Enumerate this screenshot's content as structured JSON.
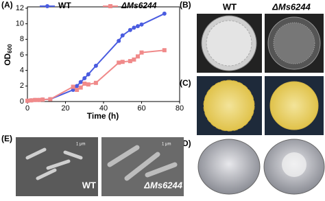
{
  "chart_data": {
    "type": "line",
    "panel_label": "(A)",
    "x_label": "Time (h)",
    "y_label": "OD",
    "y_label_sub": "600",
    "x": [
      0,
      2,
      4,
      6,
      8,
      12,
      24,
      26,
      28,
      30,
      32,
      36,
      48,
      50,
      54,
      56,
      58,
      60,
      72
    ],
    "series": [
      {
        "name": "WT",
        "color": "#4a5ce0",
        "marker": "circle",
        "values": [
          0.1,
          0.15,
          0.2,
          0.2,
          0.25,
          0.3,
          1.5,
          2.0,
          2.5,
          3.0,
          3.5,
          4.6,
          7.8,
          8.5,
          9.2,
          9.5,
          9.7,
          9.9,
          11.3
        ]
      },
      {
        "name": "ΔMs6244",
        "color": "#f08a8a",
        "marker": "square",
        "values": [
          0.1,
          0.15,
          0.2,
          0.2,
          0.25,
          0.3,
          1.9,
          1.5,
          1.8,
          2.3,
          2.2,
          2.4,
          5.0,
          5.1,
          5.2,
          5.4,
          5.8,
          6.3,
          6.6
        ]
      }
    ],
    "xlim": [
      0,
      80
    ],
    "xticks": [
      0,
      20,
      40,
      60,
      80
    ],
    "ylim": [
      0,
      12
    ],
    "yticks": [
      0,
      2,
      4,
      6,
      8,
      10,
      12
    ],
    "legend": "top"
  },
  "panels": {
    "b": {
      "label": "(B)",
      "left_title": "WT",
      "right_title": "ΔMs6244"
    },
    "c": {
      "label": "(C)"
    },
    "d": {
      "label": "(D)"
    },
    "e": {
      "label": "(E)",
      "left_caption": "WT",
      "right_caption": "ΔMs6244",
      "scale_left": "1 μm",
      "scale_right": "1 μm"
    }
  }
}
